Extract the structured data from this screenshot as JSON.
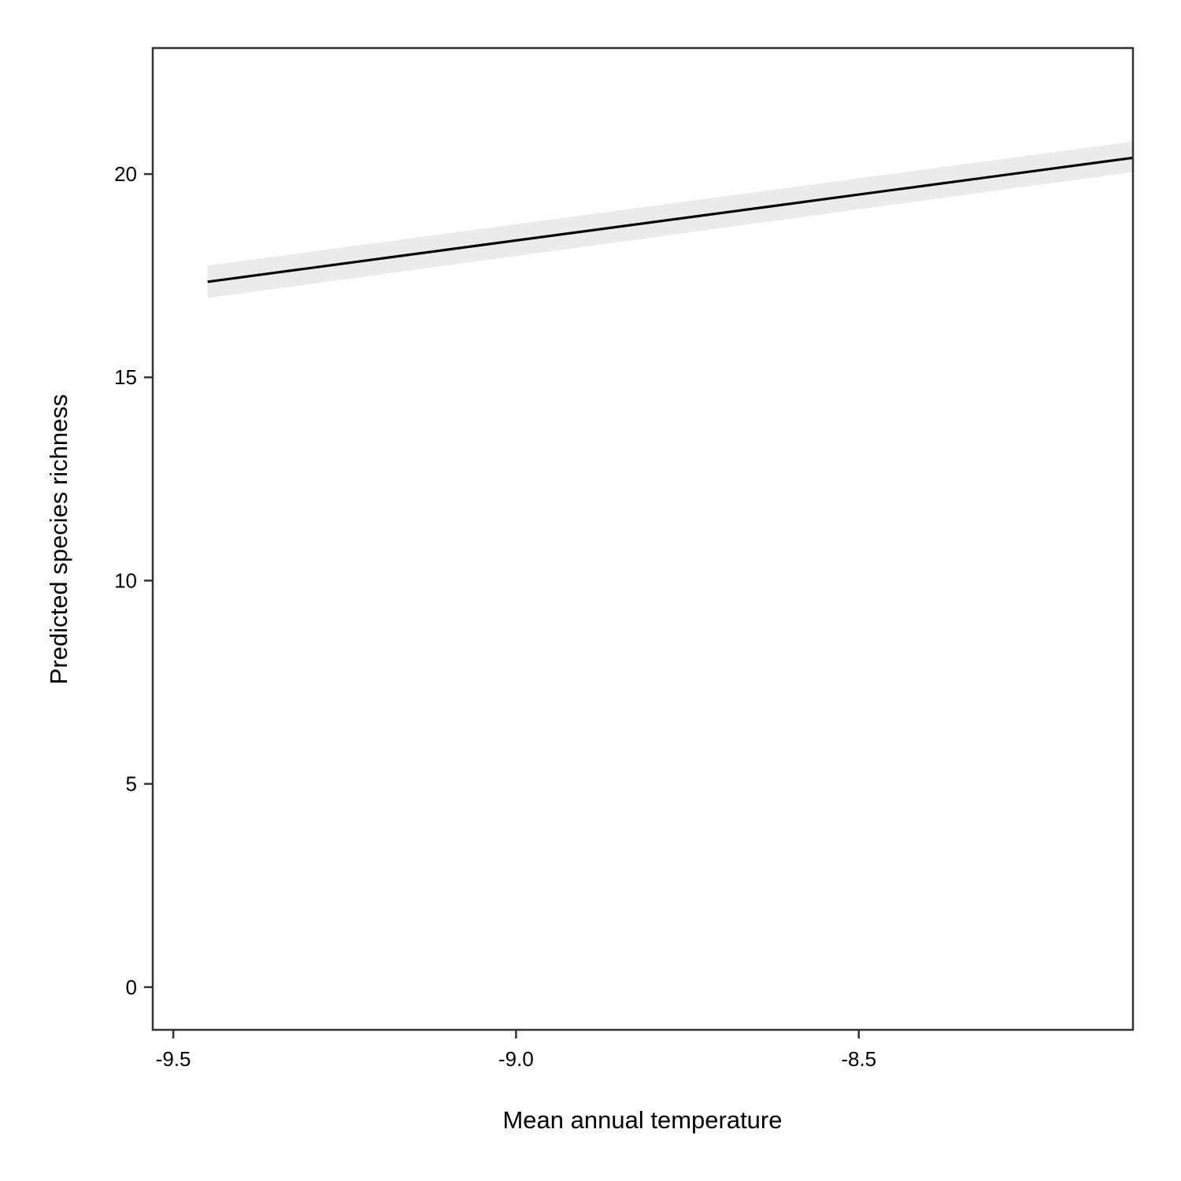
{
  "chart_data": {
    "type": "line",
    "title": "",
    "xlabel": "Mean annual temperature",
    "ylabel": "Predicted species richness",
    "xlim": [
      -9.53,
      -8.1
    ],
    "ylim": [
      -1.05,
      23.1
    ],
    "x_ticks": [
      {
        "value": -9.5,
        "label": "-9.5"
      },
      {
        "value": -9.0,
        "label": "-9.0"
      },
      {
        "value": -8.5,
        "label": "-8.5"
      }
    ],
    "y_ticks": [
      {
        "value": 0,
        "label": "0"
      },
      {
        "value": 5,
        "label": "5"
      },
      {
        "value": 10,
        "label": "10"
      },
      {
        "value": 15,
        "label": "15"
      },
      {
        "value": 20,
        "label": "20"
      }
    ],
    "grid": false,
    "series": [
      {
        "x": [
          -9.45,
          -8.1
        ],
        "y": [
          17.35,
          20.4
        ],
        "lower": [
          16.95,
          20.05
        ],
        "upper": [
          17.75,
          20.8
        ],
        "color": "#000000",
        "band_color": "#ebebeb"
      }
    ]
  }
}
